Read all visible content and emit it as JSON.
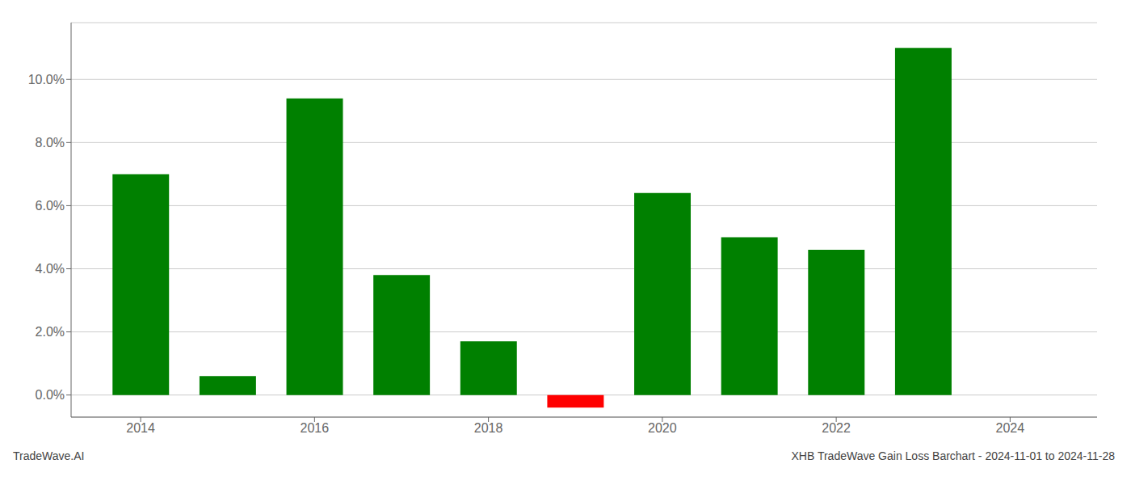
{
  "chart_data": {
    "type": "bar",
    "x": [
      2014,
      2015,
      2016,
      2017,
      2018,
      2019,
      2020,
      2021,
      2022,
      2023
    ],
    "values": [
      0.07,
      0.006,
      0.094,
      0.038,
      0.017,
      -0.004,
      0.064,
      0.05,
      0.046,
      0.11
    ],
    "colors": [
      "#008000",
      "#008000",
      "#008000",
      "#008000",
      "#008000",
      "#ff0000",
      "#008000",
      "#008000",
      "#008000",
      "#008000"
    ],
    "xlim": [
      2013.2,
      2025.0
    ],
    "xticks": [
      2014,
      2016,
      2018,
      2020,
      2022,
      2024
    ],
    "ylim": [
      -0.007,
      0.118
    ],
    "yticks": [
      {
        "value": 0.0,
        "label": "0.0%"
      },
      {
        "value": 0.02,
        "label": "2.0%"
      },
      {
        "value": 0.04,
        "label": "4.0%"
      },
      {
        "value": 0.06,
        "label": "6.0%"
      },
      {
        "value": 0.08,
        "label": "8.0%"
      },
      {
        "value": 0.1,
        "label": "10.0%"
      }
    ],
    "grid": true,
    "annotations": [
      "TradeWave.AI",
      "XHB TradeWave Gain Loss Barchart - 2024-11-01 to 2024-11-28"
    ]
  }
}
